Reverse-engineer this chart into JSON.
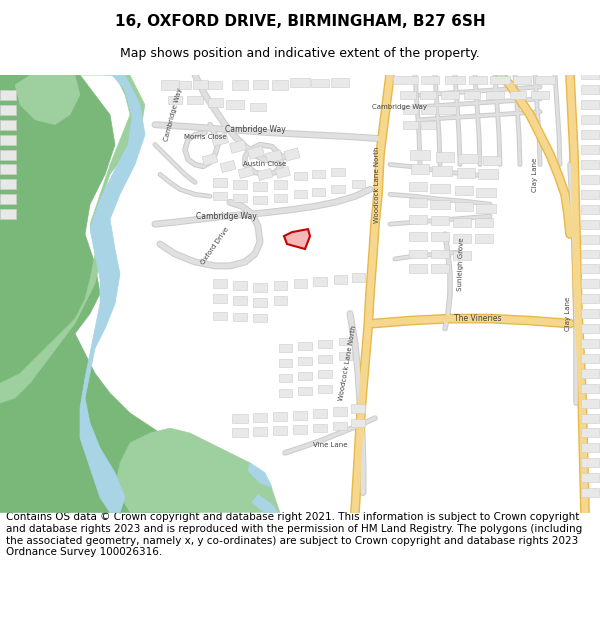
{
  "title": "16, OXFORD DRIVE, BIRMINGHAM, B27 6SH",
  "subtitle": "Map shows position and indicative extent of the property.",
  "footer": "Contains OS data © Crown copyright and database right 2021. This information is subject to Crown copyright and database rights 2023 and is reproduced with the permission of HM Land Registry. The polygons (including the associated geometry, namely x, y co-ordinates) are subject to Crown copyright and database rights 2023 Ordnance Survey 100026316.",
  "title_fontsize": 11,
  "subtitle_fontsize": 9,
  "footer_fontsize": 7.5,
  "bg_color": "#ffffff",
  "map_bg": "#f5f5f5",
  "road_color": "#e0e0e0",
  "road_edge": "#cccccc",
  "major_road_color": "#f5d78e",
  "major_road_edge": "#e8b84b",
  "green_color": "#7ab87a",
  "light_green": "#9ecf9e",
  "water_color": "#a8d4e6",
  "building_color": "#e8e8e8",
  "building_edge": "#cccccc",
  "highlight_color": "#cc0000",
  "highlight_fill": "#f5b8b8",
  "road_label_color": "#555555"
}
